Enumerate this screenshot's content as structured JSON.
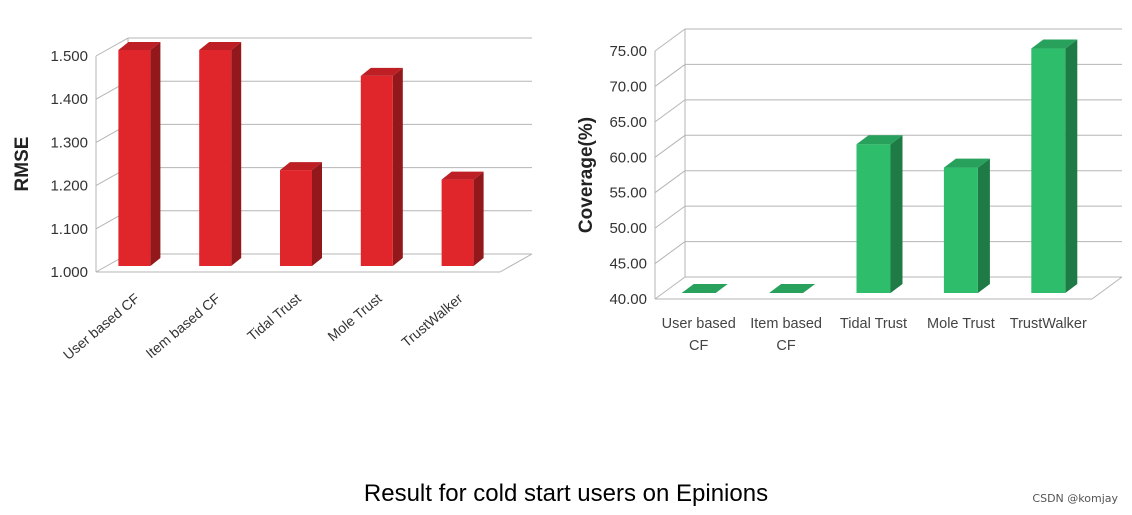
{
  "chart_data": [
    {
      "type": "bar",
      "categories": [
        "User based CF",
        "Item based CF",
        "Tidal Trust",
        "Mole Trust",
        "TrustWalker"
      ],
      "values": [
        1.5,
        1.5,
        1.222,
        1.44,
        1.2
      ],
      "title": "",
      "xlabel": "",
      "ylabel": "RMSE",
      "ylim": [
        1.0,
        1.5
      ],
      "yticks": [
        "1.000",
        "1.100",
        "1.200",
        "1.300",
        "1.400",
        "1.500"
      ],
      "grid": true,
      "color": "#e0252b",
      "three_d": true
    },
    {
      "type": "bar",
      "categories": [
        "User based CF",
        "Item based CF",
        "Tidal Trust",
        "Mole Trust",
        "TrustWalker"
      ],
      "values": [
        40.0,
        40.0,
        61.0,
        57.7,
        74.5
      ],
      "title": "",
      "xlabel": "",
      "ylabel": "Coverage(%)",
      "ylim": [
        40,
        75
      ],
      "yticks": [
        "40.00",
        "45.00",
        "50.00",
        "55.00",
        "60.00",
        "65.00",
        "70.00",
        "75.00"
      ],
      "grid": true,
      "color": "#2ebd6b",
      "three_d": true
    }
  ],
  "caption": "Result for cold start users on Epinions",
  "watermark": "CSDN @komjay"
}
